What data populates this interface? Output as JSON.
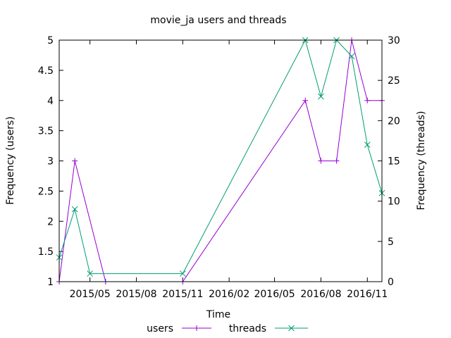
{
  "chart_data": {
    "type": "line",
    "title": "movie_ja users and threads",
    "xlabel": "Time",
    "ylabel_left": "Frequency (users)",
    "ylabel_right": "Frequency (threads)",
    "x_ticks": [
      "2015/05",
      "2015/08",
      "2015/11",
      "2016/02",
      "2016/05",
      "2016/08",
      "2016/11"
    ],
    "x_tick_dates": [
      "2015-05-01",
      "2015-08-01",
      "2015-11-01",
      "2016-02-01",
      "2016-05-01",
      "2016-08-01",
      "2016-11-01"
    ],
    "x_range": [
      "2015-03-01",
      "2016-11-30"
    ],
    "ylim_left": [
      1,
      5
    ],
    "ylim_right": [
      0,
      30
    ],
    "y_ticks_left": [
      "1",
      "1.5",
      "2",
      "2.5",
      "3",
      "3.5",
      "4",
      "4.5",
      "5"
    ],
    "y_ticks_right": [
      "0",
      "5",
      "10",
      "15",
      "20",
      "25",
      "30"
    ],
    "grid": false,
    "legend_position": "bottom",
    "series": [
      {
        "name": "users",
        "axis": "left",
        "color": "#9400d3",
        "marker": "plus",
        "points": [
          {
            "x": "2015-03-01",
            "y": 1
          },
          {
            "x": "2015-04-01",
            "y": 3
          },
          {
            "x": "2015-06-01",
            "y": 1
          },
          {
            "x": "2015-11-01",
            "y": 1
          },
          {
            "x": "2016-07-01",
            "y": 4
          },
          {
            "x": "2016-08-01",
            "y": 3
          },
          {
            "x": "2016-09-01",
            "y": 3
          },
          {
            "x": "2016-10-01",
            "y": 5
          },
          {
            "x": "2016-11-01",
            "y": 4
          },
          {
            "x": "2016-11-30",
            "y": 4
          }
        ]
      },
      {
        "name": "threads",
        "axis": "right",
        "color": "#009e73",
        "marker": "cross",
        "points": [
          {
            "x": "2015-03-01",
            "y": 3
          },
          {
            "x": "2015-04-01",
            "y": 9
          },
          {
            "x": "2015-05-01",
            "y": 1
          },
          {
            "x": "2015-11-01",
            "y": 1
          },
          {
            "x": "2016-07-01",
            "y": 30
          },
          {
            "x": "2016-08-01",
            "y": 23
          },
          {
            "x": "2016-09-01",
            "y": 30
          },
          {
            "x": "2016-10-01",
            "y": 28
          },
          {
            "x": "2016-11-01",
            "y": 17
          },
          {
            "x": "2016-11-30",
            "y": 11
          }
        ]
      }
    ]
  }
}
